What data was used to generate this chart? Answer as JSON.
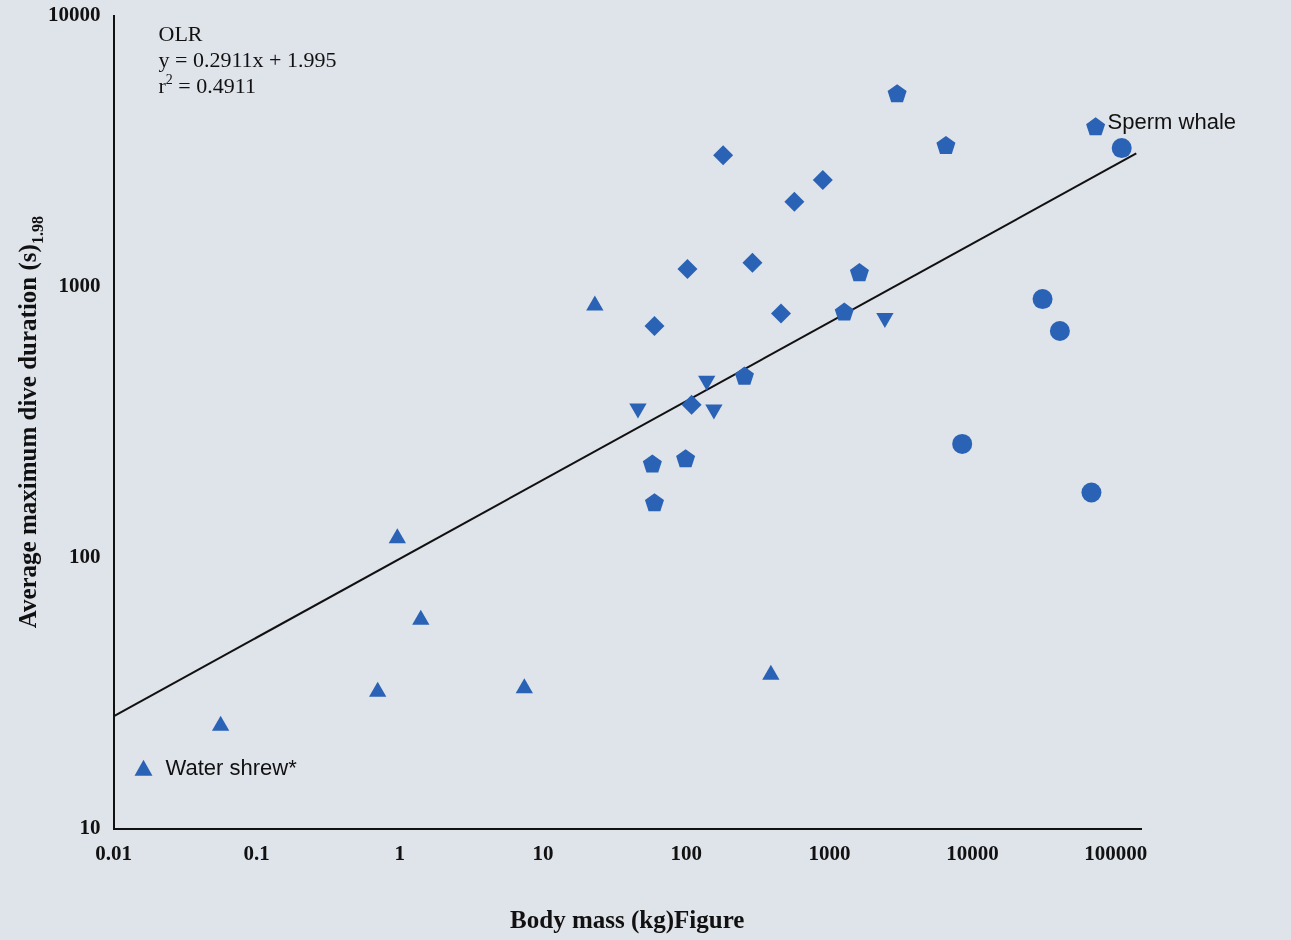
{
  "chart_data": {
    "type": "scatter",
    "xlabel": "Body mass (kg)Figure",
    "ylabel": "Average maximum dive duration (s)$_{1.98}$",
    "log": "xy",
    "xlim": [
      0.01,
      150000
    ],
    "xticks": [
      0.01,
      0.1,
      1,
      10,
      100,
      1000,
      10000,
      100000
    ],
    "ylim": [
      10,
      10000
    ],
    "yticks": [
      10,
      100,
      1000,
      10000
    ],
    "grid": false,
    "legend": "bottom left",
    "annotations": [
      "OLR",
      "y = 0.2911x + 1.995",
      "r$^{2}$ = 0.4911",
      {
        "text": "Sperm whale",
        "x": 72300,
        "y": 3873
      }
    ],
    "series": [
      {
        "name": "Water shrew*",
        "color": "#2a63b5",
        "marker": "triangle",
        "x": [
          0.056,
          0.7,
          0.96,
          1.4,
          7.4,
          23,
          390
        ],
        "values": [
          24,
          32,
          118,
          59,
          33,
          853,
          37
        ]
      },
      {
        "color": "#2a63b5",
        "marker": "triangle-down",
        "x": [
          46,
          139,
          156,
          2440
        ],
        "values": [
          355,
          450,
          352,
          767
        ]
      },
      {
        "color": "#2a63b5",
        "marker": "diamond",
        "x": [
          60,
          102,
          290,
          459,
          109,
          181,
          569,
          899
        ],
        "values": [
          716,
          1161,
          1225,
          796,
          367,
          3054,
          2055,
          2472
        ]
      },
      {
        "color": "#2a63b5",
        "x": [
          2970,
          72300,
          6510,
          1620,
          1270,
          255,
          58,
          99,
          60
        ],
        "values": [
          5130,
          3873,
          3306,
          1122,
          803,
          466,
          221,
          231,
          159
        ]
      },
      {
        "color": "#2a63b5",
        "marker": "circle",
        "x": [
          110000,
          30800,
          40700,
          8460,
          67600
        ],
        "values": [
          3246,
          900,
          686,
          263,
          174
        ]
      },
      {
        "type": "line",
        "color": "#111111",
        "marker": "none",
        "line_style": "solid",
        "x": [
          0.01,
          139000
        ],
        "values": [
          26,
          3100
        ]
      }
    ]
  }
}
